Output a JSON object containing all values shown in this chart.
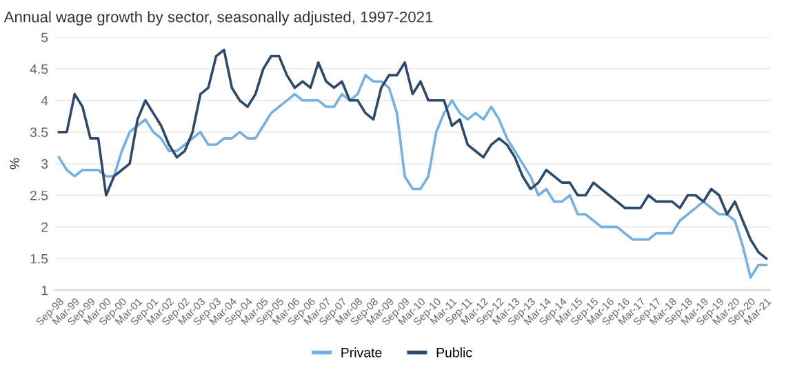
{
  "chart_data": {
    "type": "line",
    "title": "Annual wage growth by sector, seasonally adjusted, 1997-2021",
    "ylabel": "%",
    "categories": [
      "Sep-98",
      null,
      "Mar-99",
      null,
      "Sep-99",
      null,
      "Mar-00",
      null,
      "Sep-00",
      null,
      "Mar-01",
      null,
      "Sep-01",
      null,
      "Mar-02",
      null,
      "Sep-02",
      null,
      "Mar-03",
      null,
      "Sep-03",
      null,
      "Mar-04",
      null,
      "Sep-04",
      null,
      "Mar-05",
      null,
      "Sep-05",
      null,
      "Mar-06",
      null,
      "Sep-06",
      null,
      "Mar-07",
      null,
      "Sep-07",
      null,
      "Mar-08",
      null,
      "Sep-08",
      null,
      "Mar-09",
      null,
      "Sep-09",
      null,
      "Mar-10",
      null,
      "Sep-10",
      null,
      "Mar-11",
      null,
      "Sep-11",
      null,
      "Mar-12",
      null,
      "Sep-12",
      null,
      "Mar-13",
      null,
      "Sep-13",
      null,
      "Mar-14",
      null,
      "Sep-14",
      null,
      "Mar-15",
      null,
      "Sep-15",
      null,
      "Mar-16",
      null,
      "Sep-16",
      null,
      "Mar-17",
      null,
      "Sep-17",
      null,
      "Mar-18",
      null,
      "Sep-18",
      null,
      "Mar-19",
      null,
      "Sep-19",
      null,
      "Mar-20",
      null,
      "Sep-20",
      null,
      "Mar-21"
    ],
    "series": [
      {
        "name": "Private",
        "color": "#74b0e0",
        "values": [
          3.1,
          2.9,
          2.8,
          2.9,
          2.9,
          2.9,
          2.8,
          2.8,
          3.2,
          3.5,
          3.6,
          3.7,
          3.5,
          3.4,
          3.2,
          3.2,
          3.3,
          3.4,
          3.5,
          3.3,
          3.3,
          3.4,
          3.4,
          3.5,
          3.4,
          3.4,
          3.6,
          3.8,
          3.9,
          4.0,
          4.1,
          4.0,
          4.0,
          4.0,
          3.9,
          3.9,
          4.1,
          4.0,
          4.1,
          4.4,
          4.3,
          4.3,
          4.2,
          3.8,
          2.8,
          2.6,
          2.6,
          2.8,
          3.5,
          3.8,
          4.0,
          3.8,
          3.7,
          3.8,
          3.7,
          3.9,
          3.7,
          3.4,
          3.2,
          3.0,
          2.8,
          2.5,
          2.6,
          2.4,
          2.4,
          2.5,
          2.2,
          2.2,
          2.1,
          2.0,
          2.0,
          2.0,
          1.9,
          1.8,
          1.8,
          1.8,
          1.9,
          1.9,
          1.9,
          2.1,
          2.2,
          2.3,
          2.4,
          2.3,
          2.2,
          2.2,
          2.1,
          1.7,
          1.2,
          1.4,
          1.4
        ]
      },
      {
        "name": "Public",
        "color": "#2e4a6b",
        "values": [
          3.5,
          3.5,
          4.1,
          3.9,
          3.4,
          3.4,
          2.5,
          2.8,
          2.9,
          3.0,
          3.7,
          4.0,
          3.8,
          3.6,
          3.3,
          3.1,
          3.2,
          3.5,
          4.1,
          4.2,
          4.7,
          4.8,
          4.2,
          4.0,
          3.9,
          4.1,
          4.5,
          4.7,
          4.7,
          4.4,
          4.2,
          4.3,
          4.2,
          4.6,
          4.3,
          4.2,
          4.3,
          4.0,
          4.0,
          3.8,
          3.7,
          4.2,
          4.4,
          4.4,
          4.6,
          4.1,
          4.3,
          4.0,
          4.0,
          4.0,
          3.6,
          3.7,
          3.3,
          3.2,
          3.1,
          3.3,
          3.4,
          3.3,
          3.1,
          2.8,
          2.6,
          2.7,
          2.9,
          2.8,
          2.7,
          2.7,
          2.5,
          2.5,
          2.7,
          2.6,
          2.5,
          2.4,
          2.3,
          2.3,
          2.3,
          2.5,
          2.4,
          2.4,
          2.4,
          2.3,
          2.5,
          2.5,
          2.4,
          2.6,
          2.5,
          2.2,
          2.4,
          2.1,
          1.8,
          1.6,
          1.5
        ]
      }
    ],
    "ylim": [
      1,
      5
    ],
    "yticks": [
      1,
      1.5,
      2,
      2.5,
      3,
      3.5,
      4,
      4.5,
      5
    ],
    "grid": "y",
    "legend": "bottom",
    "marker": "none",
    "line_style": "solid"
  }
}
